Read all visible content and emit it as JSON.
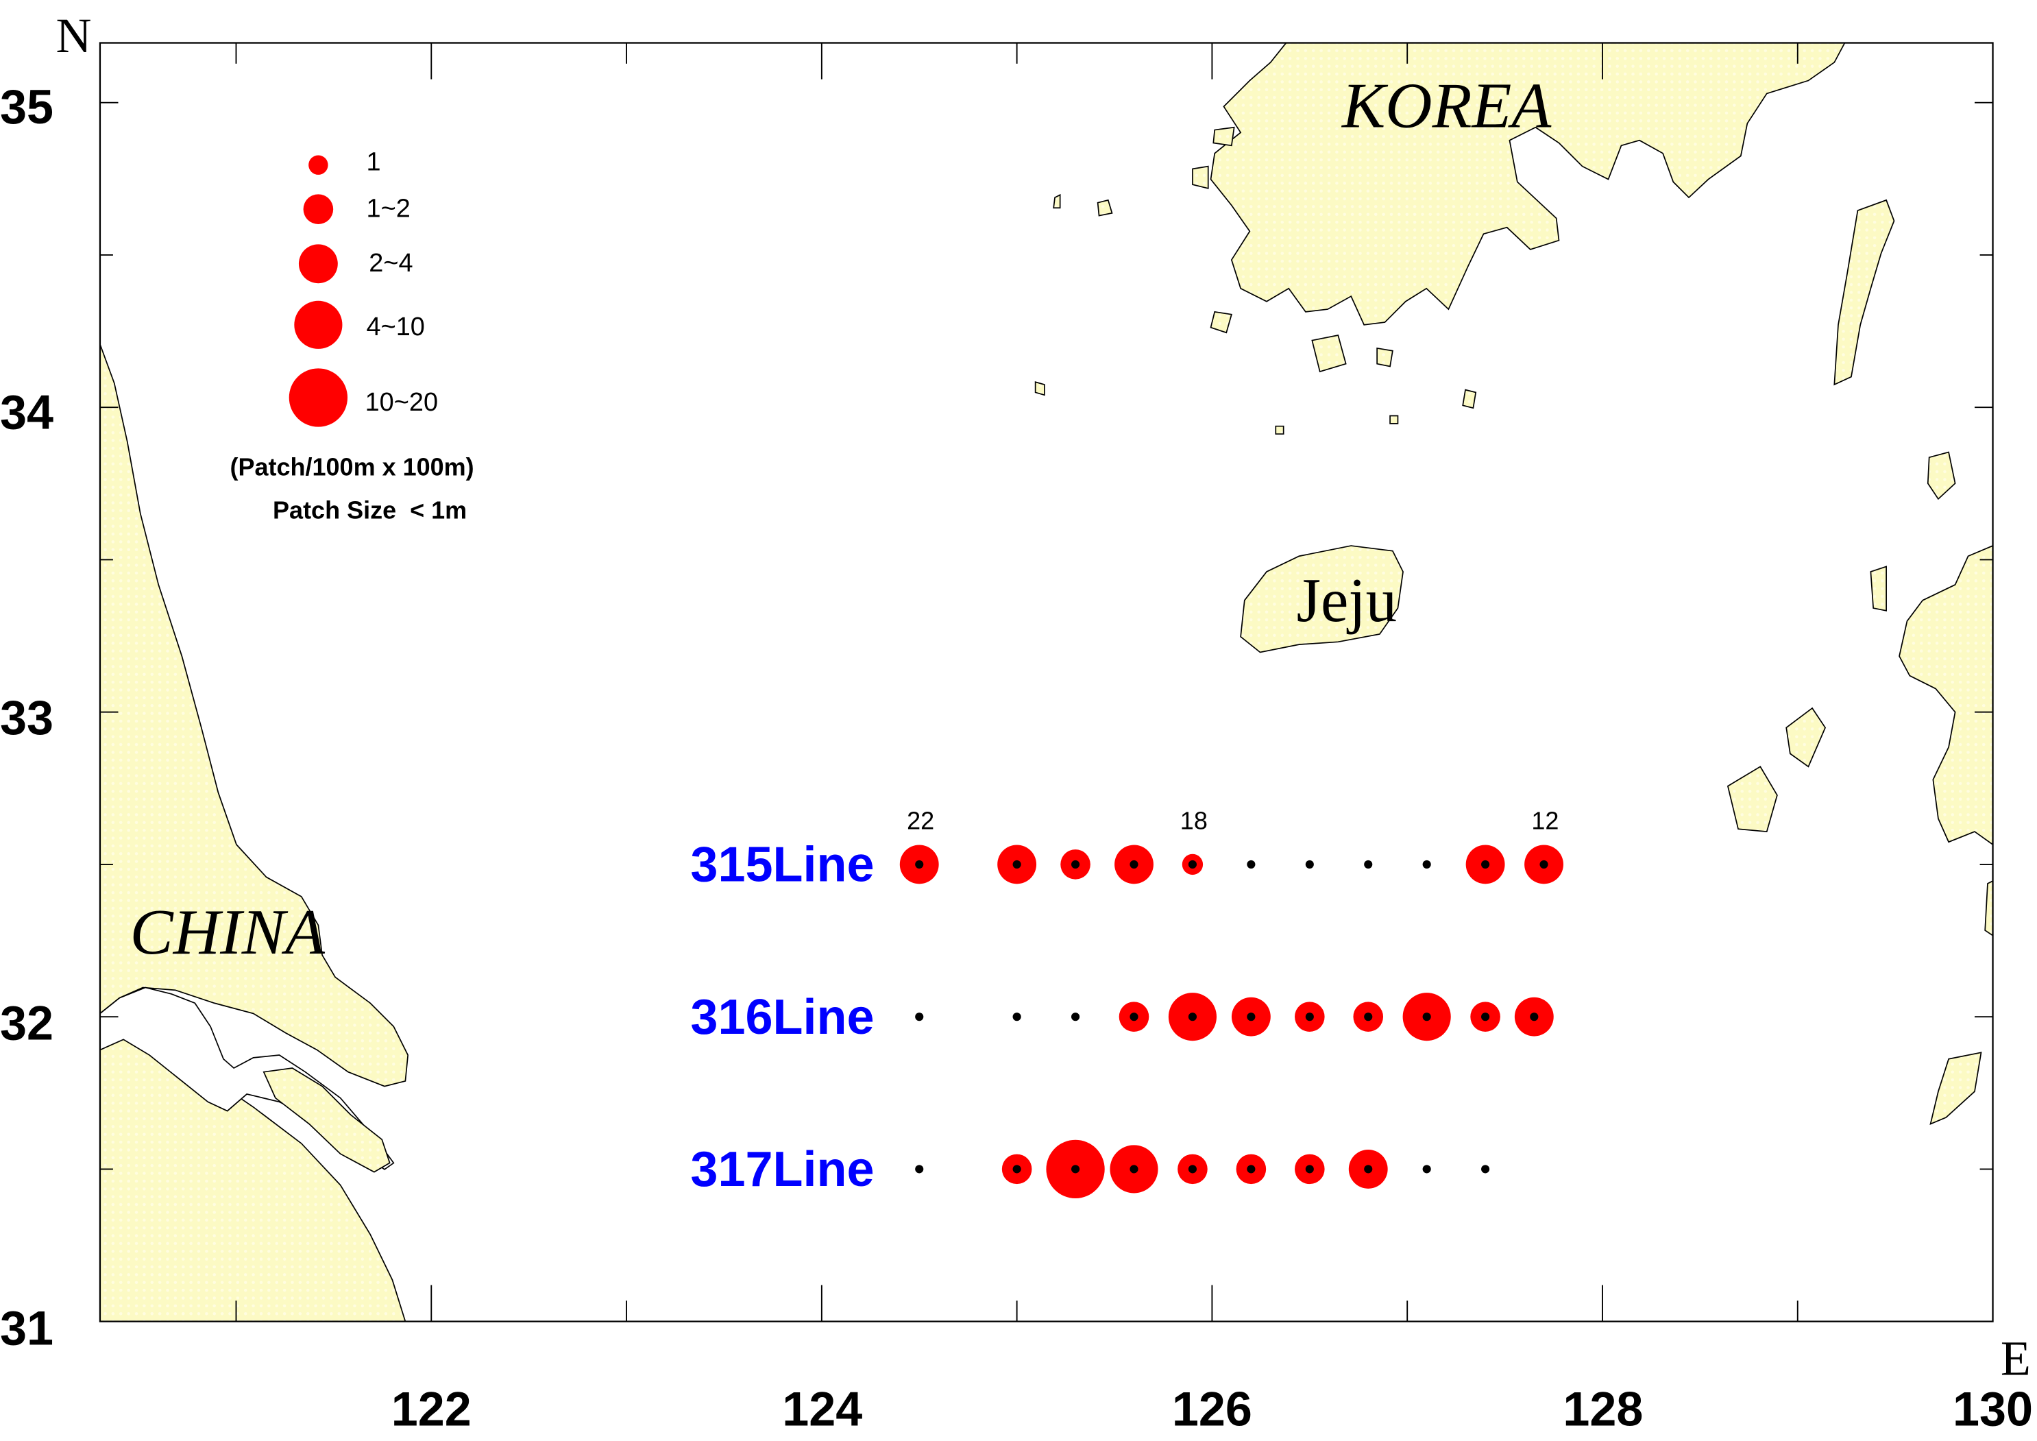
{
  "map": {
    "north_label": "N",
    "east_label": "E",
    "lat_range": [
      31,
      35.2
    ],
    "lon_range": [
      120.3,
      130
    ],
    "lat_ticks": [
      "31",
      "32",
      "33",
      "34",
      "35"
    ],
    "lon_ticks": [
      "122",
      "124",
      "126",
      "128",
      "130"
    ],
    "places": {
      "korea": "KOREA",
      "jeju": "Jeju",
      "china": "CHINA"
    },
    "colors": {
      "land": "#fcfac4",
      "patch": "#ff0000",
      "station": "#000000",
      "line_label": "#0000ff"
    }
  },
  "legend": {
    "items": [
      {
        "label": "1",
        "class": "1"
      },
      {
        "label": "1~2",
        "class": "1~2"
      },
      {
        "label": "2~4",
        "class": "2~4"
      },
      {
        "label": "4~10",
        "class": "4~10"
      },
      {
        "label": "10~20",
        "class": "10~20"
      }
    ],
    "unit": "(Patch/100m x 100m)",
    "note": "Patch Size  < 1m"
  },
  "lines": [
    {
      "name": "315Line",
      "lat": 32.5,
      "stations": [
        {
          "lon": 124.5,
          "class": "2~4",
          "label": "22"
        },
        {
          "lon": 125.0,
          "class": "2~4"
        },
        {
          "lon": 125.3,
          "class": "1~2"
        },
        {
          "lon": 125.6,
          "class": "2~4"
        },
        {
          "lon": 125.9,
          "class": "1",
          "label": "18"
        },
        {
          "lon": 126.2,
          "class": "0"
        },
        {
          "lon": 126.5,
          "class": "0"
        },
        {
          "lon": 126.8,
          "class": "0"
        },
        {
          "lon": 127.1,
          "class": "0"
        },
        {
          "lon": 127.4,
          "class": "2~4"
        },
        {
          "lon": 127.7,
          "class": "2~4",
          "label": "12"
        }
      ]
    },
    {
      "name": "316Line",
      "lat": 32.0,
      "stations": [
        {
          "lon": 124.5,
          "class": "0"
        },
        {
          "lon": 125.0,
          "class": "0"
        },
        {
          "lon": 125.3,
          "class": "0"
        },
        {
          "lon": 125.6,
          "class": "1~2"
        },
        {
          "lon": 125.9,
          "class": "4~10"
        },
        {
          "lon": 126.2,
          "class": "2~4"
        },
        {
          "lon": 126.5,
          "class": "1~2"
        },
        {
          "lon": 126.8,
          "class": "1~2"
        },
        {
          "lon": 127.1,
          "class": "4~10"
        },
        {
          "lon": 127.4,
          "class": "1~2"
        },
        {
          "lon": 127.65,
          "class": "2~4"
        }
      ]
    },
    {
      "name": "317Line",
      "lat": 31.5,
      "stations": [
        {
          "lon": 124.5,
          "class": "0"
        },
        {
          "lon": 125.0,
          "class": "1~2"
        },
        {
          "lon": 125.3,
          "class": "10~20"
        },
        {
          "lon": 125.6,
          "class": "4~10"
        },
        {
          "lon": 125.9,
          "class": "1~2"
        },
        {
          "lon": 126.2,
          "class": "1~2"
        },
        {
          "lon": 126.5,
          "class": "1~2"
        },
        {
          "lon": 126.8,
          "class": "2~4"
        },
        {
          "lon": 127.1,
          "class": "0"
        },
        {
          "lon": 127.4,
          "class": "0"
        }
      ]
    }
  ]
}
